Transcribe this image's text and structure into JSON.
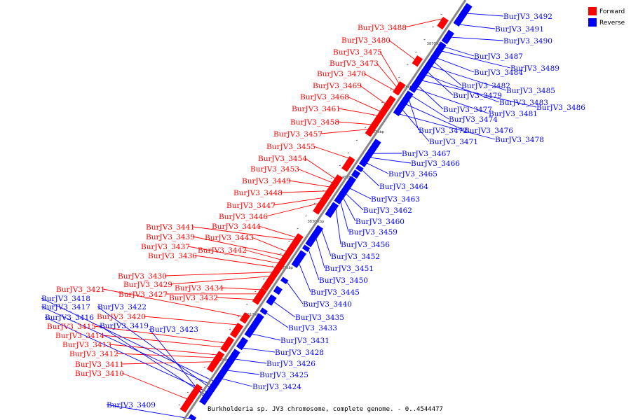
{
  "caption": "Burkholderia sp. JV3 chromosome, complete genome. - 0..4544477",
  "legend": [
    {
      "label": "Forward",
      "color": "#ff0000"
    },
    {
      "label": "Reverse",
      "color": "#0000ff"
    }
  ],
  "colors": {
    "forward": "#ff0000",
    "reverse": "#0000ff",
    "axis": "#888888"
  },
  "ticks": [
    "3800 kbp",
    "3810 kbp",
    "3820 kbp",
    "3830 kbp",
    "3840 kbp",
    "3850 kbp",
    "3860 kbp",
    "3870 kbp"
  ],
  "forward_genes": [
    "BurJV3_3488",
    "BurJV3_3480",
    "BurJV3_3475",
    "BurJV3_3473",
    "BurJV3_3470",
    "BurJV3_3469",
    "BurJV3_3468",
    "BurJV3_3461",
    "BurJV3_3458",
    "BurJV3_3457",
    "BurJV3_3455",
    "BurJV3_3454",
    "BurJV3_3453",
    "BurJV3_3449",
    "BurJV3_3448",
    "BurJV3_3447",
    "BurJV3_3446",
    "BurJV3_3444",
    "BurJV3_3441",
    "BurJV3_3443",
    "BurJV3_3439",
    "BurJV3_3442",
    "BurJV3_3437",
    "BurJV3_3436",
    "BurJV3_3430",
    "BurJV3_3429",
    "BurJV3_3434",
    "BurJV3_3427",
    "BurJV3_3432",
    "BurJV3_3421",
    "BurJV3_3420",
    "BurJV3_3415",
    "BurJV3_3414",
    "BurJV3_3413",
    "BurJV3_3412",
    "BurJV3_3411",
    "BurJV3_3410"
  ],
  "reverse_genes_left": [
    "BurJV3_3418",
    "BurJV3_3417",
    "BurJV3_3422",
    "BurJV3_3416",
    "BurJV3_3419",
    "BurJV3_3423",
    "BurJV3_3409"
  ],
  "reverse_genes_right": [
    "BurJV3_3492",
    "BurJV3_3491",
    "BurJV3_3490",
    "BurJV3_3487",
    "BurJV3_3489",
    "BurJV3_3484",
    "BurJV3_3482",
    "BurJV3_3485",
    "BurJV3_3479",
    "BurJV3_3483",
    "BurJV3_3486",
    "BurJV3_3477",
    "BurJV3_3481",
    "BurJV3_3474",
    "BurJV3_3472",
    "BurJV3_3476",
    "BurJV3_3471",
    "BurJV3_3478",
    "BurJV3_3467",
    "BurJV3_3466",
    "BurJV3_3465",
    "BurJV3_3464",
    "BurJV3_3463",
    "BurJV3_3462",
    "BurJV3_3460",
    "BurJV3_3459",
    "BurJV3_3456",
    "BurJV3_3452",
    "BurJV3_3451",
    "BurJV3_3450",
    "BurJV3_3445",
    "BurJV3_3440",
    "BurJV3_3435",
    "BurJV3_3433",
    "BurJV3_3431",
    "BurJV3_3428",
    "BurJV3_3426",
    "BurJV3_3425",
    "BurJV3_3424"
  ]
}
